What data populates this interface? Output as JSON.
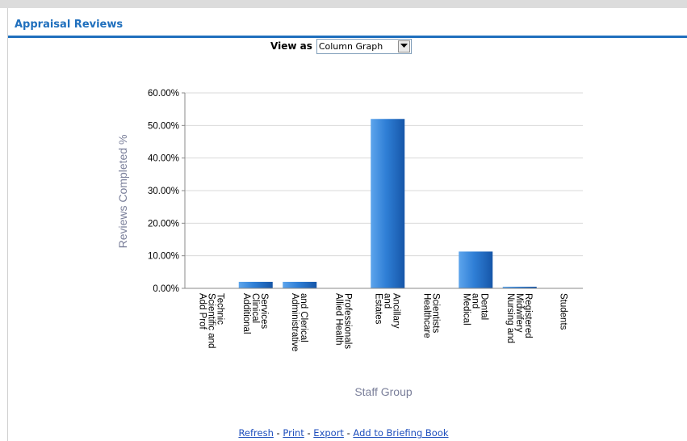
{
  "panel": {
    "title": "Appraisal Reviews"
  },
  "view_as": {
    "label": "View as",
    "selected": "Column Graph"
  },
  "chart_data": {
    "type": "bar",
    "categories": [
      "Add Prof Scientific and Technic",
      "Additional Clinical Services",
      "Administrative and Clerical",
      "Allied Health Professionals",
      "Estates and Ancillary",
      "Healthcare Scientists",
      "Medical and Dental",
      "Nursing and Midwifery Registered",
      "Students"
    ],
    "category_lines": [
      [
        "Add Prof",
        "Scientific and",
        "Technic"
      ],
      [
        "Additional",
        "Clinical",
        "Services"
      ],
      [
        "Administrative",
        "and Clerical"
      ],
      [
        "Allied Health",
        "Professionals"
      ],
      [
        "Estates",
        "and",
        "Ancillary"
      ],
      [
        "Healthcare",
        "Scientists"
      ],
      [
        "Medical",
        "and",
        "Dental"
      ],
      [
        "Nursing and",
        "Midwifery",
        "Registered"
      ],
      [
        "Students"
      ]
    ],
    "values": [
      0,
      2.0,
      2.0,
      0,
      52.0,
      0,
      11.3,
      0.5,
      0
    ],
    "xlabel": "Staff Group",
    "ylabel": "Reviews Completed %",
    "ylim": [
      0,
      60
    ],
    "yticks": [
      "0.00%",
      "10.00%",
      "20.00%",
      "30.00%",
      "40.00%",
      "50.00%",
      "60.00%"
    ],
    "grid": true,
    "bar_color": "#2f7fd6"
  },
  "links": {
    "refresh": "Refresh",
    "print": "Print",
    "export": "Export",
    "briefing": "Add to Briefing Book",
    "sep": " - "
  }
}
